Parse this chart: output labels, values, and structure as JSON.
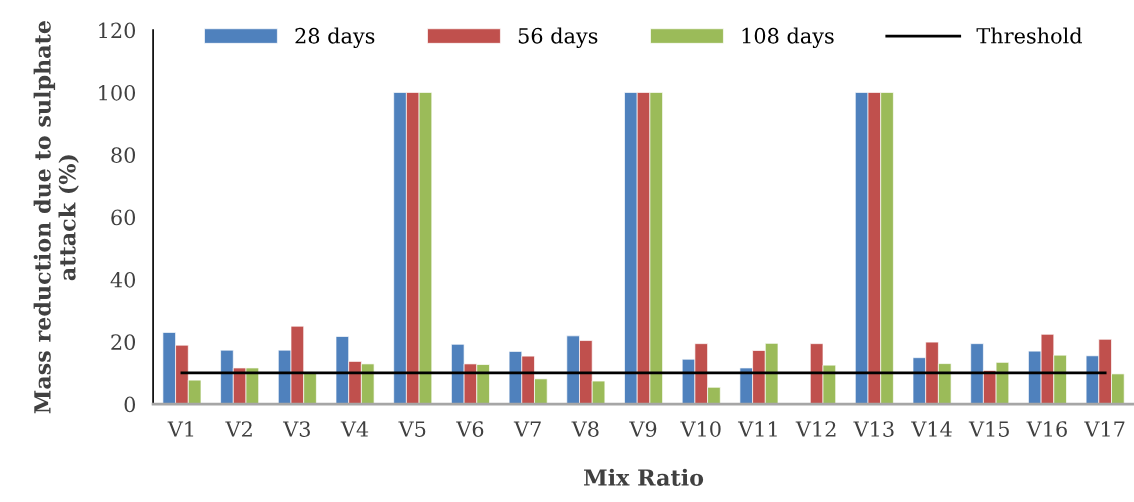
{
  "chart_data": {
    "type": "bar",
    "xlabel": "Mix Ratio",
    "ylabel": "Mass reduction due to sulphate\nattack (%)",
    "categories": [
      "V1",
      "V2",
      "V3",
      "V4",
      "V5",
      "V6",
      "V7",
      "V8",
      "V9",
      "V10",
      "V11",
      "V12",
      "V13",
      "V14",
      "V15",
      "V16",
      "V17"
    ],
    "series": [
      {
        "name": "28 days",
        "color": "#4f81bd",
        "values": [
          23,
          17.3,
          17.3,
          21.7,
          100,
          19.2,
          16.9,
          21.9,
          100,
          14.4,
          11.6,
          null,
          100,
          14.9,
          19.4,
          17.0,
          15.5
        ]
      },
      {
        "name": "56 days",
        "color": "#c0504d",
        "values": [
          18.9,
          11.6,
          25,
          13.7,
          100,
          12.9,
          15.4,
          20.4,
          100,
          19.4,
          17.2,
          19.4,
          100,
          19.9,
          10.8,
          22.4,
          20.8
        ]
      },
      {
        "name": "108 days",
        "color": "#9bbb59",
        "values": [
          7.7,
          11.6,
          10.1,
          12.9,
          100,
          12.7,
          8.1,
          7.4,
          100,
          5.4,
          19.5,
          12.5,
          100,
          13.0,
          13.4,
          15.7,
          9.7
        ]
      },
      {
        "name": "Threshold",
        "type": "line",
        "color": "#000000",
        "values": [
          10,
          10,
          10,
          10,
          10,
          10,
          10,
          10,
          10,
          10,
          10,
          10,
          10,
          10,
          10,
          10,
          10
        ]
      }
    ],
    "ylim": [
      0,
      120
    ],
    "yticks": [
      0,
      20,
      40,
      60,
      80,
      100,
      120
    ],
    "grid": false,
    "legend": "top"
  }
}
